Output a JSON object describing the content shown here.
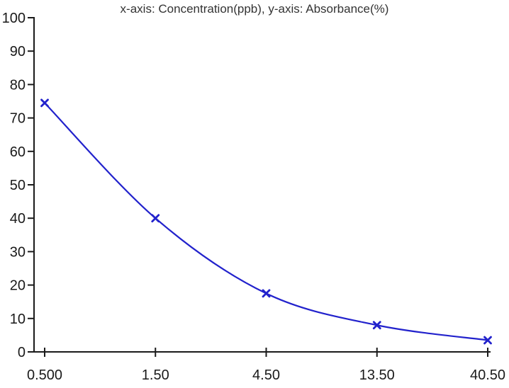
{
  "chart_data": {
    "type": "line",
    "title": "x-axis: Concentration(ppb), y-axis: Absorbance(%)",
    "xlabel": "Concentration(ppb)",
    "ylabel": "Absorbance(%)",
    "categories": [
      "0.500",
      "1.50",
      "4.50",
      "13.50",
      "40.50"
    ],
    "series": [
      {
        "name": "Absorbance(%)",
        "values": [
          74.5,
          40,
          17.5,
          8,
          3.5
        ],
        "color": "#2222cc",
        "marker": "x",
        "smooth": true
      }
    ],
    "ylim": [
      0,
      100
    ],
    "y_ticks": [
      0,
      10,
      20,
      30,
      40,
      50,
      60,
      70,
      80,
      90,
      100
    ],
    "x_spacing": "categorical-even",
    "grid": false,
    "legend": "none",
    "axis_color": "#1a1a1a",
    "tick_label_color": "#1a1a1a",
    "title_color": "#333333",
    "background": "#ffffff"
  }
}
